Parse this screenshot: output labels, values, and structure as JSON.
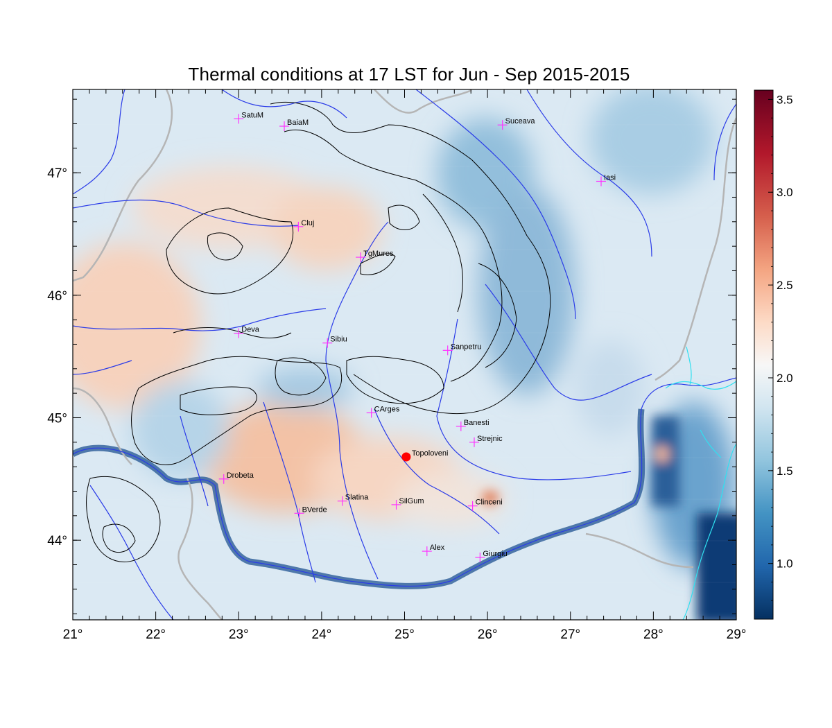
{
  "title": "Thermal conditions at 17 LST for Jun - Sep  2015-2015",
  "map": {
    "lon_range": [
      21,
      29
    ],
    "lat_range": [
      43.35,
      47.68
    ],
    "lon_ticks": [
      "21°",
      "22°",
      "23°",
      "24°",
      "25°",
      "26°",
      "27°",
      "28°",
      "29°"
    ],
    "lat_ticks": [
      "44°",
      "45°",
      "46°",
      "47°"
    ],
    "marker_color": "#ff33ff",
    "highlight_color": "#ff0000",
    "cities": [
      {
        "name": "SatuM",
        "lon": 23.0,
        "lat": 47.44
      },
      {
        "name": "BaiaM",
        "lon": 23.55,
        "lat": 47.38
      },
      {
        "name": "Suceava",
        "lon": 26.18,
        "lat": 47.39
      },
      {
        "name": "Iasi",
        "lon": 27.37,
        "lat": 46.93
      },
      {
        "name": "Cluj",
        "lon": 23.72,
        "lat": 46.56
      },
      {
        "name": "TgMures",
        "lon": 24.47,
        "lat": 46.31
      },
      {
        "name": "Deva",
        "lon": 23.0,
        "lat": 45.69
      },
      {
        "name": "Sibiu",
        "lon": 24.07,
        "lat": 45.61
      },
      {
        "name": "Sanpetru",
        "lon": 25.52,
        "lat": 45.55
      },
      {
        "name": "CArges",
        "lon": 24.6,
        "lat": 45.04
      },
      {
        "name": "Banesti",
        "lon": 25.68,
        "lat": 44.93
      },
      {
        "name": "Strejnic",
        "lon": 25.84,
        "lat": 44.8
      },
      {
        "name": "Drobeta",
        "lon": 22.82,
        "lat": 44.5
      },
      {
        "name": "Slatina",
        "lon": 24.25,
        "lat": 44.32
      },
      {
        "name": "SilGum",
        "lon": 24.9,
        "lat": 44.29
      },
      {
        "name": "Clinceni",
        "lon": 25.82,
        "lat": 44.28
      },
      {
        "name": "BVerde",
        "lon": 23.73,
        "lat": 44.22
      },
      {
        "name": "Alex",
        "lon": 25.27,
        "lat": 43.91
      },
      {
        "name": "Giurgiu",
        "lon": 25.91,
        "lat": 43.86
      }
    ],
    "highlight": {
      "name": "Topoloveni",
      "lon": 25.02,
      "lat": 44.68
    }
  },
  "colorbar": {
    "range": [
      0.7,
      3.55
    ],
    "ticks": [
      "1.0",
      "1.5",
      "2.0",
      "2.5",
      "3.0",
      "3.5"
    ],
    "colors": [
      "#053061",
      "#2166ac",
      "#4393c3",
      "#92c5de",
      "#d1e5f0",
      "#f7f7f7",
      "#fddbc7",
      "#f4a582",
      "#d6604d",
      "#b2182b",
      "#67001f"
    ]
  }
}
